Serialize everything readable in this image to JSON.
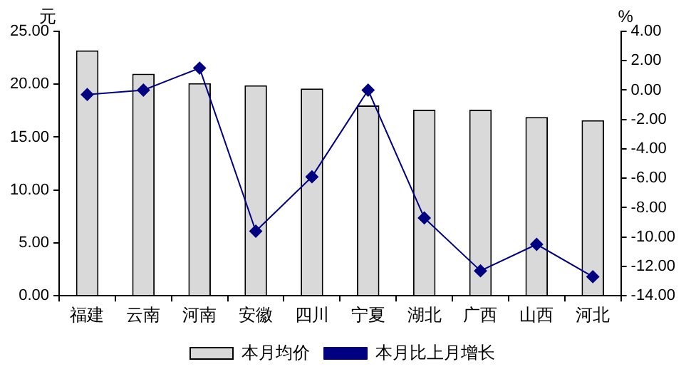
{
  "chart_data": {
    "type": "bar",
    "ylabel": "元",
    "y2label": "%",
    "categories": [
      "福建",
      "云南",
      "河南",
      "安徽",
      "四川",
      "宁夏",
      "湖北",
      "广西",
      "山西",
      "河北"
    ],
    "series": [
      {
        "name": "本月均价",
        "color": "#d9d9d9",
        "values": [
          23.2,
          21.0,
          20.1,
          19.9,
          19.6,
          18.0,
          17.6,
          17.6,
          16.9,
          16.6
        ]
      },
      {
        "name": "本月比上月增长",
        "type": "line",
        "axis": "y2",
        "color": "#000080",
        "values": [
          -0.3,
          0.0,
          1.5,
          -9.6,
          -5.9,
          0.0,
          -8.7,
          -12.3,
          -10.5,
          -12.7
        ]
      }
    ],
    "ylim": [
      0,
      25
    ],
    "yticks": [
      {
        "value": 0,
        "label": "0.00"
      },
      {
        "value": 5,
        "label": "5.00"
      },
      {
        "value": 10,
        "label": "10.00"
      },
      {
        "value": 15,
        "label": "15.00"
      },
      {
        "value": 20,
        "label": "20.00"
      },
      {
        "value": 25,
        "label": "25.00"
      }
    ],
    "y2lim": [
      -14,
      4
    ],
    "y2ticks": [
      {
        "value": -14,
        "label": "-14.00"
      },
      {
        "value": -12,
        "label": "-12.00"
      },
      {
        "value": -10,
        "label": "-10.00"
      },
      {
        "value": -8,
        "label": "-8.00"
      },
      {
        "value": -6,
        "label": "-6.00"
      },
      {
        "value": -4,
        "label": "-4.00"
      },
      {
        "value": -2,
        "label": "-2.00"
      },
      {
        "value": 0,
        "label": "0.00"
      },
      {
        "value": 2,
        "label": "2.00"
      },
      {
        "value": 4,
        "label": "4.00"
      }
    ],
    "grid": false,
    "legend": "bottom",
    "marker": "diamond",
    "line_style": "solid"
  }
}
